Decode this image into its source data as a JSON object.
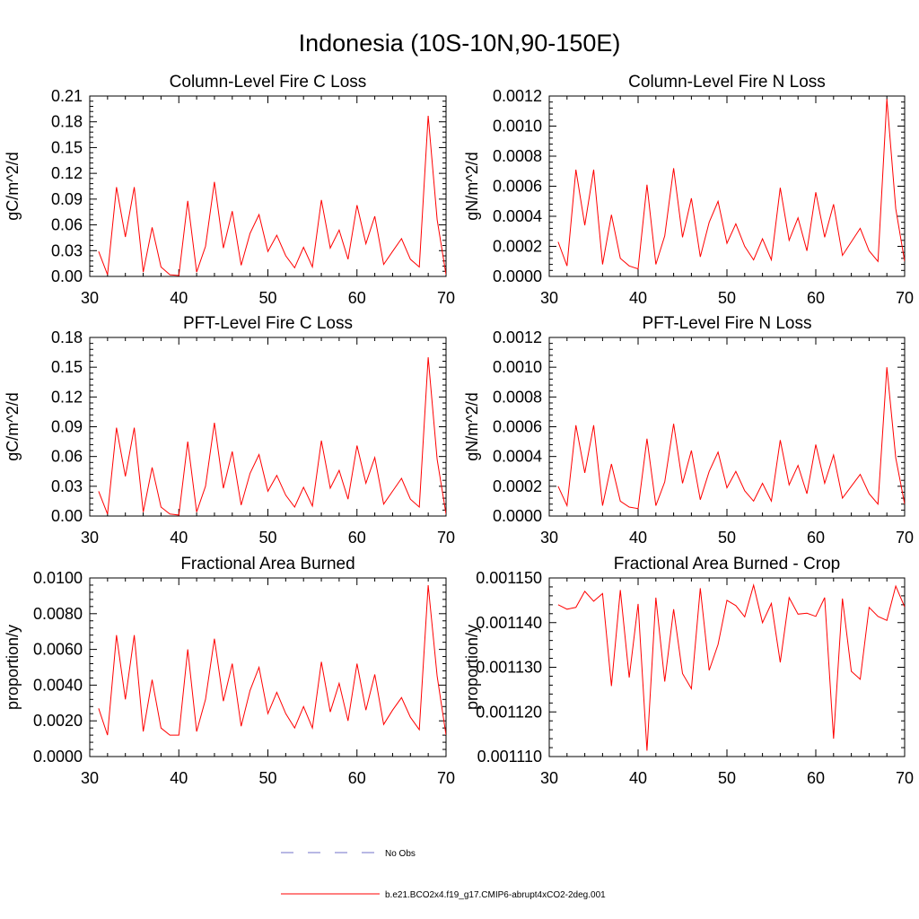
{
  "figure_title": "Indonesia (10S-10N,90-150E)",
  "colors": {
    "series": "#ff0000",
    "obs": "#7070c8",
    "axis": "#000000"
  },
  "legend": {
    "items": [
      {
        "label": "No Obs",
        "style": "dashed",
        "color": "#7070c8"
      },
      {
        "label": "b.e21.BCO2x4.f19_g17.CMIP6-abrupt4xCO2-2deg.001",
        "style": "solid",
        "color": "#ff0000"
      }
    ]
  },
  "chart_data": [
    {
      "type": "line",
      "title": "Column-Level Fire C Loss",
      "ylabel": "gC/m^2/d",
      "xlabel": "",
      "xlim": [
        30,
        70
      ],
      "ylim": [
        0,
        0.21
      ],
      "xticks": [
        "30",
        "40",
        "50",
        "60",
        "70"
      ],
      "yticks": [
        "0.00",
        "0.03",
        "0.06",
        "0.09",
        "0.12",
        "0.15",
        "0.18",
        "0.21"
      ],
      "series": [
        {
          "name": "b.e21.BCO2x4.f19_g17.CMIP6-abrupt4xCO2-2deg.001",
          "x": [
            31,
            32,
            33,
            34,
            35,
            36,
            37,
            38,
            39,
            40,
            41,
            42,
            43,
            44,
            45,
            46,
            47,
            48,
            49,
            50,
            51,
            52,
            53,
            54,
            55,
            56,
            57,
            58,
            59,
            60,
            61,
            62,
            63,
            64,
            65,
            66,
            67,
            68,
            69,
            70
          ],
          "values": [
            0.029,
            0.002,
            0.104,
            0.046,
            0.104,
            0.005,
            0.057,
            0.011,
            0.002,
            0.001,
            0.088,
            0.005,
            0.035,
            0.11,
            0.033,
            0.076,
            0.013,
            0.05,
            0.072,
            0.029,
            0.048,
            0.024,
            0.01,
            0.034,
            0.011,
            0.089,
            0.033,
            0.054,
            0.02,
            0.083,
            0.038,
            0.07,
            0.014,
            0.029,
            0.044,
            0.02,
            0.011,
            0.187,
            0.066,
            0.002
          ]
        }
      ]
    },
    {
      "type": "line",
      "title": "Column-Level Fire N Loss",
      "ylabel": "gN/m^2/d",
      "xlabel": "",
      "xlim": [
        30,
        70
      ],
      "ylim": [
        0,
        0.0012
      ],
      "xticks": [
        "30",
        "40",
        "50",
        "60",
        "70"
      ],
      "yticks": [
        "0.0000",
        "0.0002",
        "0.0004",
        "0.0006",
        "0.0008",
        "0.0010",
        "0.0012"
      ],
      "series": [
        {
          "name": "b.e21.BCO2x4.f19_g17.CMIP6-abrupt4xCO2-2deg.001",
          "x": [
            31,
            32,
            33,
            34,
            35,
            36,
            37,
            38,
            39,
            40,
            41,
            42,
            43,
            44,
            45,
            46,
            47,
            48,
            49,
            50,
            51,
            52,
            53,
            54,
            55,
            56,
            57,
            58,
            59,
            60,
            61,
            62,
            63,
            64,
            65,
            66,
            67,
            68,
            69,
            70
          ],
          "values": [
            0.00023,
            7e-05,
            0.00071,
            0.00034,
            0.00071,
            8e-05,
            0.00041,
            0.00012,
            7e-05,
            5e-05,
            0.00061,
            8e-05,
            0.00027,
            0.00072,
            0.00026,
            0.00052,
            0.00013,
            0.00036,
            0.0005,
            0.00022,
            0.00035,
            0.0002,
            0.00011,
            0.00025,
            0.00011,
            0.00059,
            0.00024,
            0.00039,
            0.00017,
            0.00056,
            0.00026,
            0.00048,
            0.00014,
            0.00023,
            0.00032,
            0.00017,
            0.0001,
            0.00118,
            0.00045,
            0.0001
          ]
        }
      ]
    },
    {
      "type": "line",
      "title": "PFT-Level Fire C Loss",
      "ylabel": "gC/m^2/d",
      "xlabel": "",
      "xlim": [
        30,
        70
      ],
      "ylim": [
        0,
        0.18
      ],
      "xticks": [
        "30",
        "40",
        "50",
        "60",
        "70"
      ],
      "yticks": [
        "0.00",
        "0.03",
        "0.06",
        "0.09",
        "0.12",
        "0.15",
        "0.18"
      ],
      "series": [
        {
          "name": "b.e21.BCO2x4.f19_g17.CMIP6-abrupt4xCO2-2deg.001",
          "x": [
            31,
            32,
            33,
            34,
            35,
            36,
            37,
            38,
            39,
            40,
            41,
            42,
            43,
            44,
            45,
            46,
            47,
            48,
            49,
            50,
            51,
            52,
            53,
            54,
            55,
            56,
            57,
            58,
            59,
            60,
            61,
            62,
            63,
            64,
            65,
            66,
            67,
            68,
            69,
            70
          ],
          "values": [
            0.025,
            0.002,
            0.089,
            0.04,
            0.089,
            0.004,
            0.049,
            0.009,
            0.002,
            0.001,
            0.075,
            0.004,
            0.03,
            0.094,
            0.028,
            0.065,
            0.011,
            0.043,
            0.062,
            0.025,
            0.041,
            0.021,
            0.009,
            0.029,
            0.01,
            0.076,
            0.028,
            0.046,
            0.017,
            0.071,
            0.033,
            0.059,
            0.012,
            0.025,
            0.038,
            0.017,
            0.009,
            0.16,
            0.057,
            0.002
          ]
        }
      ]
    },
    {
      "type": "line",
      "title": "PFT-Level Fire N Loss",
      "ylabel": "gN/m^2/d",
      "xlabel": "",
      "xlim": [
        30,
        70
      ],
      "ylim": [
        0,
        0.0012
      ],
      "xticks": [
        "30",
        "40",
        "50",
        "60",
        "70"
      ],
      "yticks": [
        "0.0000",
        "0.0002",
        "0.0004",
        "0.0006",
        "0.0008",
        "0.0010",
        "0.0012"
      ],
      "series": [
        {
          "name": "b.e21.BCO2x4.f19_g17.CMIP6-abrupt4xCO2-2deg.001",
          "x": [
            31,
            32,
            33,
            34,
            35,
            36,
            37,
            38,
            39,
            40,
            41,
            42,
            43,
            44,
            45,
            46,
            47,
            48,
            49,
            50,
            51,
            52,
            53,
            54,
            55,
            56,
            57,
            58,
            59,
            60,
            61,
            62,
            63,
            64,
            65,
            66,
            67,
            68,
            69,
            70
          ],
          "values": [
            0.0002,
            7e-05,
            0.00061,
            0.00029,
            0.00061,
            7e-05,
            0.00035,
            0.0001,
            6e-05,
            5e-05,
            0.00052,
            7e-05,
            0.00023,
            0.00062,
            0.00022,
            0.00044,
            0.00011,
            0.0003,
            0.00043,
            0.00019,
            0.0003,
            0.00017,
            0.0001,
            0.00022,
            0.0001,
            0.00051,
            0.00021,
            0.00034,
            0.00015,
            0.00048,
            0.00022,
            0.00041,
            0.00012,
            0.0002,
            0.00028,
            0.00015,
            8e-05,
            0.001,
            0.00039,
            8e-05
          ]
        }
      ]
    },
    {
      "type": "line",
      "title": "Fractional Area Burned",
      "ylabel": "proportion/y",
      "xlabel": "",
      "xlim": [
        30,
        70
      ],
      "ylim": [
        0,
        0.01
      ],
      "xticks": [
        "30",
        "40",
        "50",
        "60",
        "70"
      ],
      "yticks": [
        "0.0000",
        "0.0020",
        "0.0040",
        "0.0060",
        "0.0080",
        "0.0100"
      ],
      "series": [
        {
          "name": "b.e21.BCO2x4.f19_g17.CMIP6-abrupt4xCO2-2deg.001",
          "x": [
            31,
            32,
            33,
            34,
            35,
            36,
            37,
            38,
            39,
            40,
            41,
            42,
            43,
            44,
            45,
            46,
            47,
            48,
            49,
            50,
            51,
            52,
            53,
            54,
            55,
            56,
            57,
            58,
            59,
            60,
            61,
            62,
            63,
            64,
            65,
            66,
            67,
            68,
            69,
            70
          ],
          "values": [
            0.0027,
            0.0012,
            0.0068,
            0.0032,
            0.0068,
            0.0014,
            0.0043,
            0.0016,
            0.0012,
            0.0012,
            0.006,
            0.0014,
            0.0032,
            0.0066,
            0.0031,
            0.0052,
            0.0017,
            0.0037,
            0.005,
            0.0024,
            0.0036,
            0.0024,
            0.0016,
            0.0028,
            0.0016,
            0.0053,
            0.0025,
            0.0041,
            0.002,
            0.0052,
            0.0026,
            0.0046,
            0.0018,
            0.0026,
            0.0033,
            0.0022,
            0.0015,
            0.0096,
            0.0045,
            0.0012
          ]
        }
      ]
    },
    {
      "type": "line",
      "title": "Fractional Area Burned - Crop",
      "ylabel": "proportion/y",
      "xlabel": "",
      "xlim": [
        30,
        70
      ],
      "ylim": [
        0.00111,
        0.00115
      ],
      "xticks": [
        "30",
        "40",
        "50",
        "60",
        "70"
      ],
      "yticks": [
        "0.001110",
        "0.001120",
        "0.001130",
        "0.001140",
        "0.001150"
      ],
      "series": [
        {
          "name": "b.e21.BCO2x4.f19_g17.CMIP6-abrupt4xCO2-2deg.001",
          "x": [
            31,
            32,
            33,
            34,
            35,
            36,
            37,
            38,
            39,
            40,
            41,
            42,
            43,
            44,
            45,
            46,
            47,
            48,
            49,
            50,
            51,
            52,
            53,
            54,
            55,
            56,
            57,
            58,
            59,
            60,
            61,
            62,
            63,
            64,
            65,
            66,
            67,
            68,
            69,
            70
          ],
          "values": [
            0.001144,
            0.001143,
            0.0011434,
            0.001147,
            0.0011448,
            0.0011465,
            0.0011258,
            0.0011473,
            0.0011277,
            0.0011442,
            0.0011113,
            0.0011456,
            0.0011268,
            0.001143,
            0.0011286,
            0.0011252,
            0.0011477,
            0.0011293,
            0.0011351,
            0.001145,
            0.0011438,
            0.0011413,
            0.0011484,
            0.00114,
            0.0011443,
            0.0011311,
            0.0011456,
            0.0011419,
            0.0011421,
            0.0011414,
            0.0011456,
            0.001114,
            0.0011454,
            0.0011291,
            0.0011273,
            0.0011434,
            0.0011414,
            0.0011405,
            0.0011482,
            0.0011435
          ]
        }
      ]
    }
  ]
}
